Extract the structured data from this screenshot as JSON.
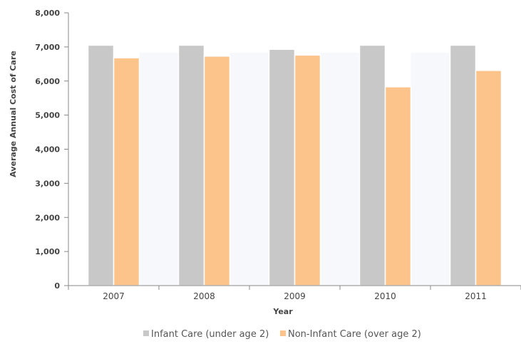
{
  "chart_data": {
    "type": "bar",
    "title": "",
    "xlabel": "Year",
    "ylabel": "Average Annual Cost of Care",
    "categories": [
      "2007",
      "2008",
      "2009",
      "2010",
      "2011"
    ],
    "ylim": [
      0,
      8000
    ],
    "yticks": [
      "0",
      "1,000",
      "2,000",
      "3,000",
      "4,000",
      "5,000",
      "6,000",
      "7,000",
      "8,000"
    ],
    "grid": false,
    "legend_position": "bottom",
    "series": [
      {
        "name": "Infant Care (under age 2)",
        "color": "#c8c8c8",
        "values": [
          7050,
          7050,
          6930,
          7050,
          7050
        ]
      },
      {
        "name": "Non-Infant Care (over age 2)",
        "color": "#fcc48a",
        "values": [
          6680,
          6730,
          6760,
          5830,
          6310
        ]
      }
    ]
  }
}
